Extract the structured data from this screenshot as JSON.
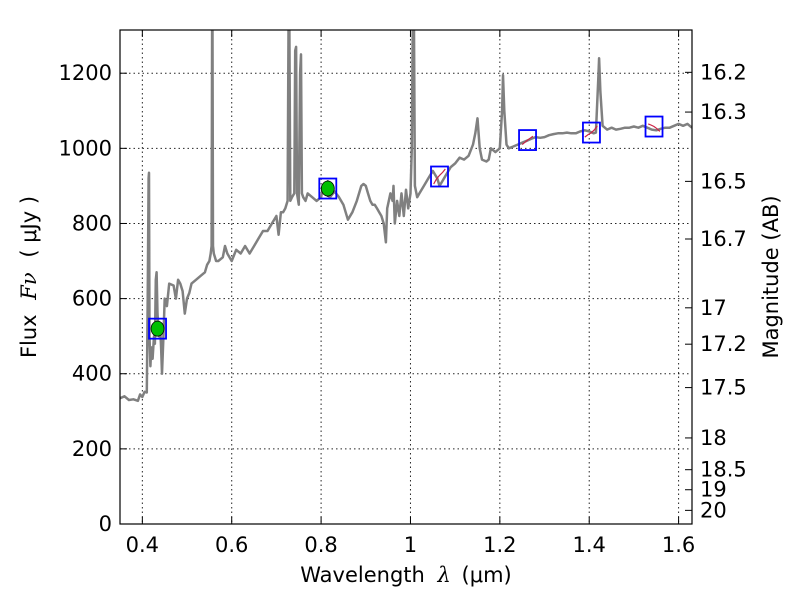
{
  "chart_data": {
    "type": "line",
    "xlabel": "Wavelength",
    "xlabel_symbol": "λ",
    "xlabel_unit": "(μm)",
    "ylabel": "Flux",
    "ylabel_symbol": "Fν",
    "ylabel_unit": "( μJy )",
    "ylabel_right": "Magnitude (AB)",
    "xlim": [
      0.35,
      1.63
    ],
    "ylim": [
      0,
      1315
    ],
    "x_ticks": [
      0.4,
      0.6,
      0.8,
      1.0,
      1.2,
      1.4,
      1.6
    ],
    "x_tick_labels": [
      "0.4",
      "0.6",
      "0.8",
      "1",
      "1.2",
      "1.4",
      "1.6"
    ],
    "y_ticks": [
      0,
      200,
      400,
      600,
      800,
      1000,
      1200
    ],
    "y_tick_labels": [
      "0",
      "200",
      "400",
      "600",
      "800",
      "1000",
      "1200"
    ],
    "mag_ticks": [
      16.2,
      16.3,
      16.5,
      16.7,
      17,
      17.2,
      17.5,
      18,
      18.5,
      19,
      20
    ],
    "mag_tick_labels": [
      "16.2",
      "16.3",
      "16.5",
      "16.7",
      "17",
      "17.2",
      "17.5",
      "18",
      "18.5",
      "19",
      "20"
    ],
    "grid": true,
    "series": [
      {
        "name": "spectrum",
        "color": "#808080",
        "points": [
          [
            0.35,
            335
          ],
          [
            0.36,
            340
          ],
          [
            0.37,
            330
          ],
          [
            0.38,
            332
          ],
          [
            0.39,
            328
          ],
          [
            0.395,
            345
          ],
          [
            0.4,
            338
          ],
          [
            0.405,
            352
          ],
          [
            0.41,
            350
          ],
          [
            0.412,
            600
          ],
          [
            0.414,
            920
          ],
          [
            0.415,
            935
          ],
          [
            0.416,
            500
          ],
          [
            0.418,
            420
          ],
          [
            0.42,
            470
          ],
          [
            0.423,
            440
          ],
          [
            0.426,
            500
          ],
          [
            0.428,
            480
          ],
          [
            0.43,
            650
          ],
          [
            0.432,
            670
          ],
          [
            0.434,
            560
          ],
          [
            0.437,
            500
          ],
          [
            0.44,
            520
          ],
          [
            0.442,
            470
          ],
          [
            0.444,
            400
          ],
          [
            0.447,
            490
          ],
          [
            0.45,
            600
          ],
          [
            0.455,
            580
          ],
          [
            0.46,
            640
          ],
          [
            0.47,
            635
          ],
          [
            0.475,
            600
          ],
          [
            0.48,
            650
          ],
          [
            0.485,
            640
          ],
          [
            0.49,
            620
          ],
          [
            0.495,
            560
          ],
          [
            0.5,
            600
          ],
          [
            0.505,
            615
          ],
          [
            0.51,
            640
          ],
          [
            0.52,
            650
          ],
          [
            0.53,
            660
          ],
          [
            0.54,
            670
          ],
          [
            0.545,
            690
          ],
          [
            0.55,
            700
          ],
          [
            0.553,
            720
          ],
          [
            0.555,
            740
          ],
          [
            0.556,
            1315
          ],
          [
            0.557,
            1315
          ],
          [
            0.558,
            740
          ],
          [
            0.56,
            720
          ],
          [
            0.565,
            700
          ],
          [
            0.57,
            700
          ],
          [
            0.58,
            710
          ],
          [
            0.585,
            740
          ],
          [
            0.59,
            720
          ],
          [
            0.6,
            700
          ],
          [
            0.61,
            730
          ],
          [
            0.62,
            720
          ],
          [
            0.63,
            740
          ],
          [
            0.64,
            720
          ],
          [
            0.65,
            740
          ],
          [
            0.66,
            760
          ],
          [
            0.67,
            780
          ],
          [
            0.68,
            780
          ],
          [
            0.69,
            800
          ],
          [
            0.7,
            820
          ],
          [
            0.705,
            770
          ],
          [
            0.71,
            830
          ],
          [
            0.715,
            830
          ],
          [
            0.72,
            840
          ],
          [
            0.725,
            860
          ],
          [
            0.727,
            1315
          ],
          [
            0.729,
            1315
          ],
          [
            0.731,
            860
          ],
          [
            0.735,
            870
          ],
          [
            0.74,
            880
          ],
          [
            0.742,
            1260
          ],
          [
            0.744,
            1270
          ],
          [
            0.746,
            880
          ],
          [
            0.75,
            850
          ],
          [
            0.753,
            1200
          ],
          [
            0.755,
            1250
          ],
          [
            0.757,
            880
          ],
          [
            0.76,
            870
          ],
          [
            0.765,
            860
          ],
          [
            0.77,
            880
          ],
          [
            0.78,
            870
          ],
          [
            0.79,
            860
          ],
          [
            0.8,
            870
          ],
          [
            0.805,
            900
          ],
          [
            0.81,
            880
          ],
          [
            0.82,
            870
          ],
          [
            0.83,
            885
          ],
          [
            0.84,
            870
          ],
          [
            0.85,
            850
          ],
          [
            0.86,
            810
          ],
          [
            0.87,
            830
          ],
          [
            0.88,
            860
          ],
          [
            0.89,
            900
          ],
          [
            0.895,
            905
          ],
          [
            0.9,
            900
          ],
          [
            0.905,
            880
          ],
          [
            0.91,
            860
          ],
          [
            0.915,
            850
          ],
          [
            0.92,
            850
          ],
          [
            0.925,
            840
          ],
          [
            0.93,
            830
          ],
          [
            0.935,
            820
          ],
          [
            0.94,
            800
          ],
          [
            0.945,
            750
          ],
          [
            0.948,
            840
          ],
          [
            0.955,
            880
          ],
          [
            0.96,
            860
          ],
          [
            0.962,
            900
          ],
          [
            0.965,
            800
          ],
          [
            0.97,
            860
          ],
          [
            0.975,
            820
          ],
          [
            0.98,
            880
          ],
          [
            0.985,
            820
          ],
          [
            0.99,
            890
          ],
          [
            0.995,
            840
          ],
          [
            1.0,
            880
          ],
          [
            1.003,
            1000
          ],
          [
            1.005,
            1315
          ],
          [
            1.008,
            1315
          ],
          [
            1.01,
            900
          ],
          [
            1.015,
            870
          ],
          [
            1.02,
            880
          ],
          [
            1.03,
            900
          ],
          [
            1.04,
            920
          ],
          [
            1.05,
            940
          ],
          [
            1.06,
            920
          ],
          [
            1.065,
            900
          ],
          [
            1.07,
            910
          ],
          [
            1.08,
            930
          ],
          [
            1.09,
            950
          ],
          [
            1.1,
            960
          ],
          [
            1.11,
            975
          ],
          [
            1.12,
            970
          ],
          [
            1.13,
            980
          ],
          [
            1.14,
            1010
          ],
          [
            1.145,
            1040
          ],
          [
            1.15,
            1080
          ],
          [
            1.155,
            1000
          ],
          [
            1.16,
            970
          ],
          [
            1.17,
            965
          ],
          [
            1.175,
            970
          ],
          [
            1.18,
            1000
          ],
          [
            1.19,
            990
          ],
          [
            1.2,
            1000
          ],
          [
            1.205,
            1100
          ],
          [
            1.207,
            1195
          ],
          [
            1.21,
            1100
          ],
          [
            1.215,
            1010
          ],
          [
            1.22,
            1000
          ],
          [
            1.23,
            1005
          ],
          [
            1.24,
            1010
          ],
          [
            1.25,
            1015
          ],
          [
            1.26,
            1020
          ],
          [
            1.27,
            1025
          ],
          [
            1.28,
            1030
          ],
          [
            1.29,
            1028
          ],
          [
            1.3,
            1030
          ],
          [
            1.31,
            1035
          ],
          [
            1.32,
            1038
          ],
          [
            1.33,
            1040
          ],
          [
            1.34,
            1040
          ],
          [
            1.35,
            1042
          ],
          [
            1.36,
            1040
          ],
          [
            1.37,
            1040
          ],
          [
            1.38,
            1045
          ],
          [
            1.39,
            1048
          ],
          [
            1.4,
            1045
          ],
          [
            1.41,
            1040
          ],
          [
            1.415,
            1042
          ],
          [
            1.42,
            1180
          ],
          [
            1.422,
            1240
          ],
          [
            1.425,
            1150
          ],
          [
            1.43,
            1060
          ],
          [
            1.44,
            1050
          ],
          [
            1.45,
            1055
          ],
          [
            1.46,
            1050
          ],
          [
            1.47,
            1052
          ],
          [
            1.48,
            1055
          ],
          [
            1.49,
            1055
          ],
          [
            1.5,
            1058
          ],
          [
            1.51,
            1055
          ],
          [
            1.52,
            1060
          ],
          [
            1.53,
            1055
          ],
          [
            1.54,
            1050
          ],
          [
            1.55,
            1048
          ],
          [
            1.56,
            1052
          ],
          [
            1.57,
            1055
          ],
          [
            1.58,
            1055
          ],
          [
            1.59,
            1060
          ],
          [
            1.6,
            1065
          ],
          [
            1.61,
            1060
          ],
          [
            1.62,
            1065
          ],
          [
            1.63,
            1055
          ]
        ]
      }
    ],
    "photometry_points": [
      {
        "name": "g-band",
        "x": 0.434,
        "y": 520,
        "yerr": 20,
        "color": "#00c000"
      },
      {
        "name": "i-band",
        "x": 0.815,
        "y": 893,
        "yerr": 22,
        "color": "#00c000"
      }
    ],
    "box_markers": [
      {
        "x": 0.434,
        "y": 520
      },
      {
        "x": 0.815,
        "y": 893
      },
      {
        "x": 1.065,
        "y": 925
      },
      {
        "x": 1.262,
        "y": 1022
      },
      {
        "x": 1.405,
        "y": 1042
      },
      {
        "x": 1.545,
        "y": 1058
      }
    ],
    "synthetic_segments": [
      {
        "x": [
          1.052,
          1.058,
          1.065,
          1.072,
          1.078
        ],
        "y": [
          905,
          918,
          928,
          936,
          945
        ]
      },
      {
        "x": [
          1.25,
          1.256,
          1.262,
          1.268,
          1.274
        ],
        "y": [
          1010,
          1016,
          1022,
          1027,
          1032
        ]
      },
      {
        "x": [
          1.39,
          1.397,
          1.405,
          1.412,
          1.418
        ],
        "y": [
          1030,
          1036,
          1042,
          1050,
          1060
        ]
      },
      {
        "x": [
          1.532,
          1.538,
          1.545,
          1.552,
          1.558
        ],
        "y": [
          1065,
          1062,
          1058,
          1052,
          1045
        ]
      }
    ],
    "colors": {
      "spectrum": "#808080",
      "box": "#0000ff",
      "synthetic": "#cc2244",
      "photometry": "#00c000"
    }
  }
}
